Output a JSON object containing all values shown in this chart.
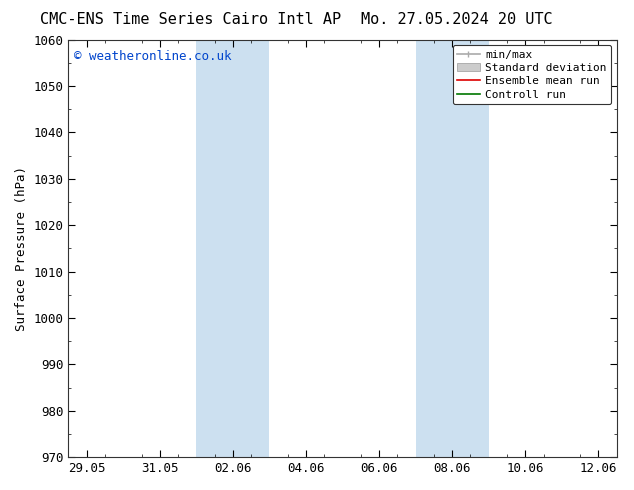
{
  "title_left": "CMC-ENS Time Series Cairo Intl AP",
  "title_right": "Mo. 27.05.2024 20 UTC",
  "ylabel": "Surface Pressure (hPa)",
  "ylim": [
    970,
    1060
  ],
  "yticks": [
    970,
    980,
    990,
    1000,
    1010,
    1020,
    1030,
    1040,
    1050,
    1060
  ],
  "xtick_labels": [
    "29.05",
    "31.05",
    "02.06",
    "04.06",
    "06.06",
    "08.06",
    "10.06",
    "12.06"
  ],
  "xtick_positions": [
    0,
    2,
    4,
    6,
    8,
    10,
    12,
    14
  ],
  "xlim": [
    -0.5,
    14.5
  ],
  "watermark": "© weatheronline.co.uk",
  "shaded_bands": [
    {
      "xstart": 3.0,
      "xend": 5.0,
      "color": "#cce0f0"
    },
    {
      "xstart": 9.0,
      "xend": 11.0,
      "color": "#cce0f0"
    }
  ],
  "legend_entries": [
    {
      "label": "min/max",
      "color": "#aaaaaa",
      "lw": 1.2,
      "style": "line_capped"
    },
    {
      "label": "Standard deviation",
      "color": "#cccccc",
      "lw": 7,
      "style": "band"
    },
    {
      "label": "Ensemble mean run",
      "color": "#dd0000",
      "lw": 1.2,
      "style": "line"
    },
    {
      "label": "Controll run",
      "color": "#007700",
      "lw": 1.2,
      "style": "line"
    }
  ],
  "bg_color": "#ffffff",
  "plot_bg_color": "#ffffff",
  "title_fontsize": 11,
  "axis_fontsize": 9,
  "tick_fontsize": 9,
  "watermark_color": "#0044cc",
  "watermark_fontsize": 9
}
